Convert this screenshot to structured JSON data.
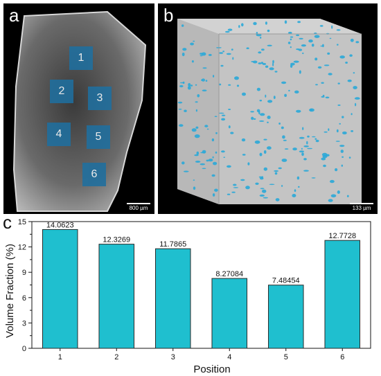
{
  "panels": {
    "a": {
      "label": "a",
      "scale_label": "800 µm",
      "regions": [
        "1",
        "2",
        "3",
        "4",
        "5",
        "6"
      ]
    },
    "b": {
      "label": "b",
      "scale_label": "133 µm"
    },
    "c": {
      "label": "c"
    }
  },
  "colors": {
    "bar": "#1fbfcf",
    "bar_stroke": "#2a2a2a",
    "region": "#1f6f9f",
    "pore": "#2aa8d8"
  },
  "chart_data": {
    "type": "bar",
    "categories": [
      "1",
      "2",
      "3",
      "4",
      "5",
      "6"
    ],
    "values": [
      14.0623,
      12.3269,
      11.7865,
      8.27084,
      7.48454,
      12.7728
    ],
    "value_labels": [
      "14.0623",
      "12.3269",
      "11.7865",
      "8.27084",
      "7.48454",
      "12.7728"
    ],
    "xlabel": "Position",
    "ylabel": "Volume Fraction (%)",
    "ylim": [
      0,
      15
    ],
    "yticks": [
      "0",
      "3",
      "6",
      "9",
      "12",
      "15"
    ],
    "grid": false
  }
}
